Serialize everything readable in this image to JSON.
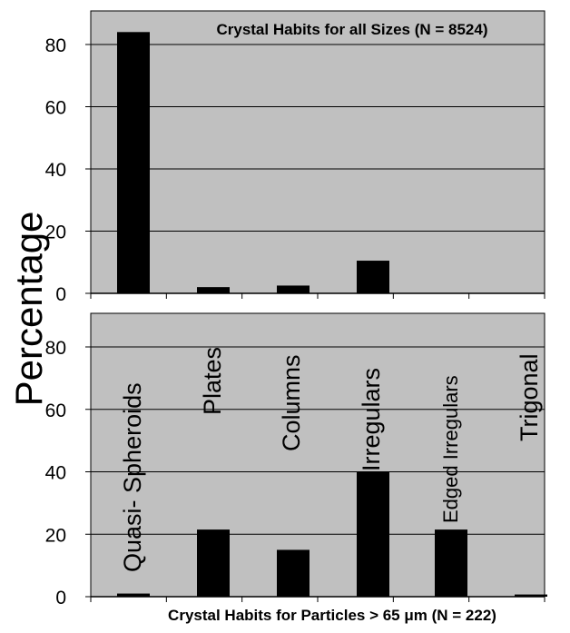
{
  "chart_data": [
    {
      "type": "bar",
      "title": "Crystal Habits for all Sizes (N = 8524)",
      "ylabel": "Percentage",
      "categories": [
        "Quasi- Spheroids",
        "Plates",
        "Columns",
        "Irregulars",
        "Edged Irregulars",
        "Trigonal"
      ],
      "values": [
        84,
        2,
        2.5,
        10.5,
        0,
        0
      ],
      "ylim": [
        0,
        90
      ],
      "yticks": [
        0,
        20,
        40,
        60,
        80
      ],
      "grid": true,
      "colors": {
        "plot_bg": "#c0c0c0",
        "bar": "#000000",
        "grid": "#000000"
      }
    },
    {
      "type": "bar",
      "title": "Crystal Habits for Particles > 65 μm (N = 222)",
      "ylabel": "Percentage",
      "categories": [
        "Quasi- Spheroids",
        "Plates",
        "Columns",
        "Irregulars",
        "Edged Irregulars",
        "Trigonal"
      ],
      "values": [
        1,
        21.5,
        15,
        40,
        21.5,
        0.7
      ],
      "ylim": [
        0,
        90
      ],
      "yticks": [
        0,
        20,
        40,
        60,
        80
      ],
      "grid": true,
      "colors": {
        "plot_bg": "#c0c0c0",
        "bar": "#000000",
        "grid": "#000000"
      }
    }
  ]
}
